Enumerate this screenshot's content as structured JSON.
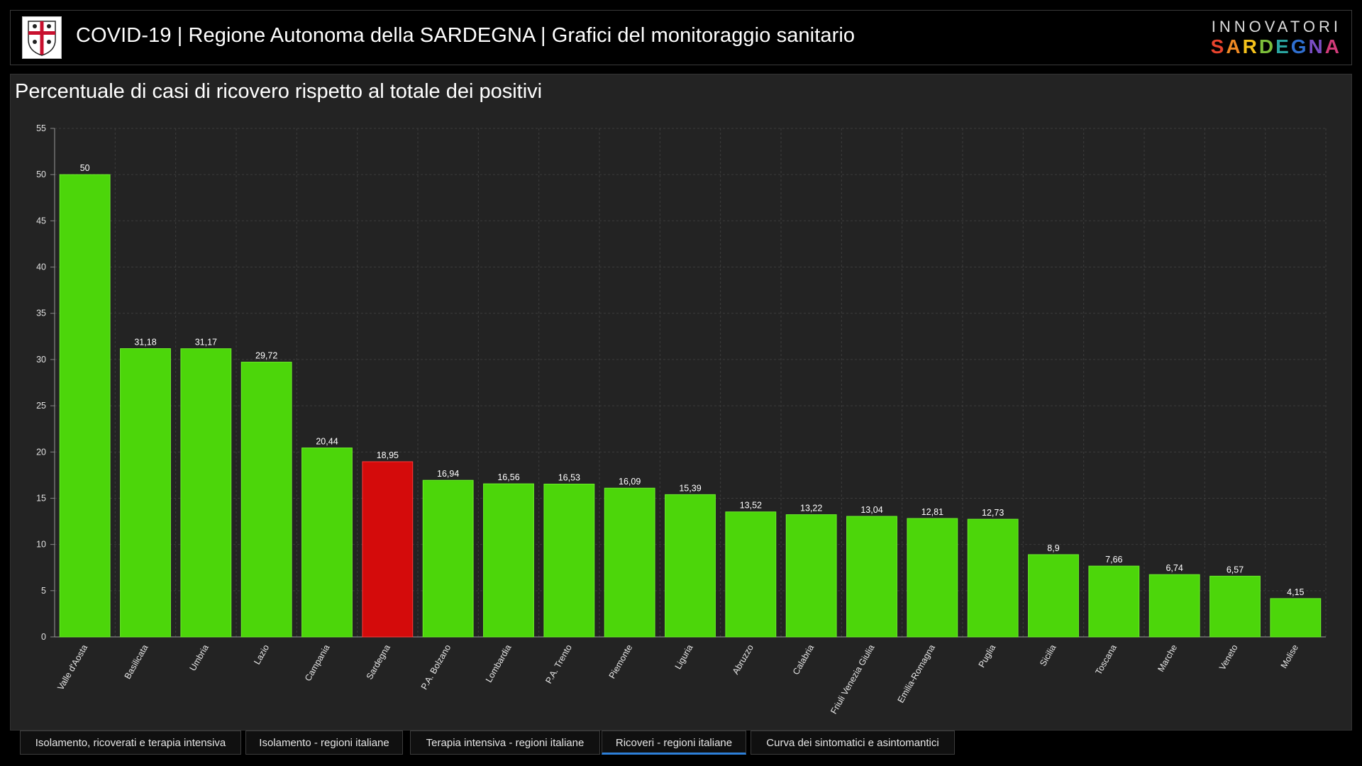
{
  "header": {
    "title": "COVID-19 | Regione Autonoma della SARDEGNA | Grafici del monitoraggio sanitario",
    "brand_top": "INNOVATORI",
    "brand_bottom": "SARDEGNA",
    "brand_letter_colors": [
      "#e8432d",
      "#f08a24",
      "#f5c21b",
      "#7cbf3a",
      "#2aa5a0",
      "#2f6fd0",
      "#7a4ec4",
      "#d23b7a"
    ]
  },
  "tabs": [
    {
      "label": "Isolamento, ricoverati e terapia intensiva",
      "active": false
    },
    {
      "label": "Isolamento - regioni italiane",
      "active": false
    },
    {
      "label": "Terapia intensiva - regioni italiane",
      "active": false
    },
    {
      "label": "Ricoveri - regioni italiane",
      "active": true
    },
    {
      "label": "Curva dei sintomatici e asintomantici",
      "active": false
    }
  ],
  "colors": {
    "bar": "#4cd60a",
    "bar_highlight": "#d40b0b",
    "grid": "#3c3c3c",
    "active_tab_underline": "#2d7fd8"
  },
  "chart_data": {
    "type": "bar",
    "title": "Percentuale di casi di ricovero rispetto al totale dei positivi",
    "xlabel": "",
    "ylabel": "",
    "ylim": [
      0,
      55
    ],
    "yticks": [
      0,
      5,
      10,
      15,
      20,
      25,
      30,
      35,
      40,
      45,
      50,
      55
    ],
    "grid": true,
    "highlight": "Sardegna",
    "categories": [
      "Valle d'Aosta",
      "Basilicata",
      "Umbria",
      "Lazio",
      "Campania",
      "Sardegna",
      "P.A. Bolzano",
      "Lombardia",
      "P.A. Trento",
      "Piemonte",
      "Liguria",
      "Abruzzo",
      "Calabria",
      "Friuli Venezia Giulia",
      "Emilia-Romagna",
      "Puglia",
      "Sicilia",
      "Toscana",
      "Marche",
      "Veneto",
      "Molise"
    ],
    "values": [
      50,
      31.18,
      31.17,
      29.72,
      20.44,
      18.95,
      16.94,
      16.56,
      16.53,
      16.09,
      15.39,
      13.52,
      13.22,
      13.04,
      12.81,
      12.73,
      8.9,
      7.66,
      6.74,
      6.57,
      4.15
    ],
    "data_labels": [
      "50",
      "31,18",
      "31,17",
      "29,72",
      "20,44",
      "18,95",
      "16,94",
      "16,56",
      "16,53",
      "16,09",
      "15,39",
      "13,52",
      "13,22",
      "13,04",
      "12,81",
      "12,73",
      "8,9",
      "7,66",
      "6,74",
      "6,57",
      "4,15"
    ]
  }
}
